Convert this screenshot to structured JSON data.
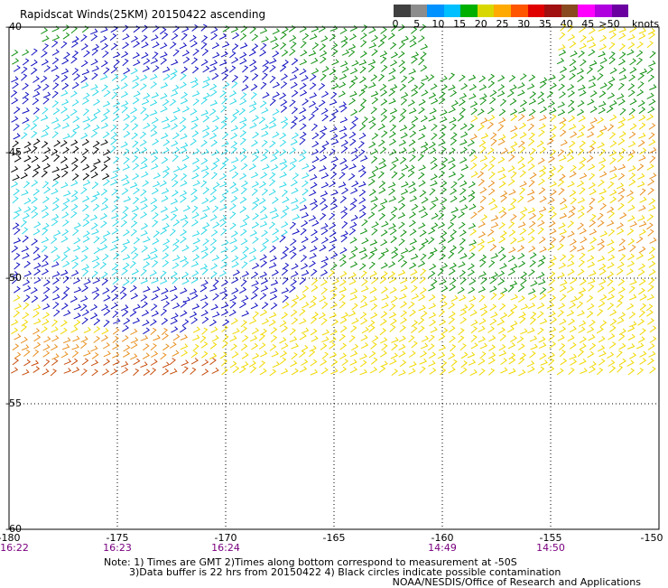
{
  "title": "Rapidscat Winds(25KM) 20150422 ascending",
  "legend": {
    "colors": [
      "#404040",
      "#8c8c8c",
      "#0092ff",
      "#00c0ff",
      "#00b000",
      "#d8d800",
      "#ffaa00",
      "#ff5500",
      "#e00000",
      "#a01010",
      "#8a4a20",
      "#ff00ff",
      "#b000e0",
      "#6a00a0"
    ],
    "ticks": [
      "0",
      "5",
      "10",
      "15",
      "20",
      "25",
      "30",
      "35",
      "40",
      "45",
      ">50"
    ],
    "unit": "knots"
  },
  "map": {
    "lat_labels": [
      "-40",
      "-45",
      "-50",
      "-55",
      "-60"
    ],
    "lon_labels": [
      "-180",
      "-175",
      "-170",
      "-165",
      "-160",
      "-155",
      "-150"
    ],
    "time_labels": [
      {
        "text": "16:22",
        "lon": "-180"
      },
      {
        "text": "16:23",
        "lon": "-175"
      },
      {
        "text": "16:24",
        "lon": "-170"
      },
      {
        "text": "14:49",
        "lon": "-160"
      },
      {
        "text": "14:50",
        "lon": "-155"
      }
    ],
    "wind_colors": {
      "black": "#000000",
      "lightblue": "#30d8e8",
      "blue": "#1010c0",
      "green": "#109010",
      "yellow": "#f0d800",
      "orange": "#e89020",
      "darkorange": "#c85010"
    }
  },
  "notes": {
    "line1": "Note: 1) Times are GMT 2)Times along bottom correspond to measurement at -50S",
    "line2": "3)Data buffer is 22 hrs from 20150422 4) Black circles indicate possible contamination",
    "credit": "NOAA/NESDIS/Office of Research and Applications"
  }
}
